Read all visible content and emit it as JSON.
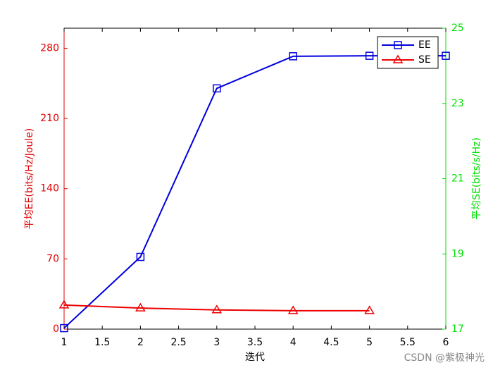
{
  "chart_data": {
    "type": "line",
    "x": [
      1,
      2,
      3,
      4,
      5,
      6
    ],
    "xlabel": "迭代",
    "ylabel": "平均EE(bits/Hz/Joule)",
    "y2label": "平均SE(bits/s/Hz)",
    "xlim": [
      1,
      6
    ],
    "xticks": [
      1,
      1.5,
      2,
      2.5,
      3,
      3.5,
      4,
      4.5,
      5,
      5.5,
      6
    ],
    "ylim": [
      0,
      300
    ],
    "yticks": [
      0,
      70,
      140,
      210,
      280
    ],
    "y2lim": [
      17,
      25
    ],
    "y2ticks": [
      17,
      19,
      21,
      23,
      25
    ],
    "ycolor": "#e00000",
    "y2color": "#00e000",
    "legend": "top-right",
    "series": [
      {
        "name": "EE",
        "color": "#0000dd",
        "marker": "square",
        "values": [
          1,
          72,
          240,
          272,
          272.5,
          272.5
        ]
      },
      {
        "name": "SE",
        "color": "#ee0000",
        "marker": "triangle",
        "axis": "y2",
        "values": [
          17.64,
          17.56,
          17.51,
          17.49,
          17.49,
          null
        ]
      }
    ],
    "watermark": "CSDN @紫极神光"
  }
}
